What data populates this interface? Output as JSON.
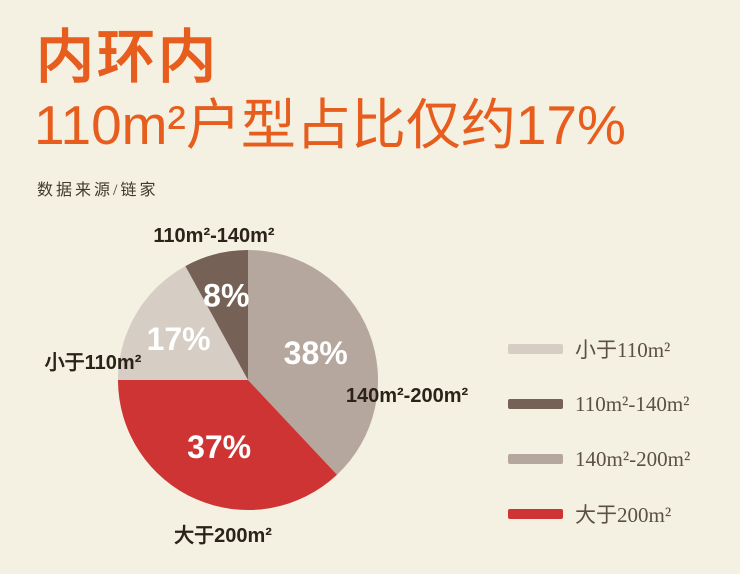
{
  "header": {
    "title_line1": "内环内",
    "title_line2": "110m²户型占比仅约17%",
    "source": "数据来源/链家"
  },
  "colors": {
    "background": "#f4f0e2",
    "accent_orange": "#e75d1d",
    "slice_label_text": "#2b221a",
    "legend_text": "#5c5046",
    "percent_text": "#ffffff"
  },
  "chart_data": {
    "type": "pie",
    "title": "内环内 110m²户型占比仅约17%",
    "source": "数据来源/链家",
    "direction": "clockwise",
    "start_angle_deg": 0,
    "legend_position": "right",
    "percent_label_format": "{value}%",
    "slices": [
      {
        "label": "140m²-200m²",
        "value": 38,
        "color": "#b5a79d"
      },
      {
        "label": "大于200m²",
        "value": 37,
        "color": "#ce3433"
      },
      {
        "label": "小于110m²",
        "value": 17,
        "color": "#d6cdc4"
      },
      {
        "label": "110m²-140m²",
        "value": 8,
        "color": "#756156"
      }
    ],
    "legend_order": [
      2,
      3,
      0,
      1
    ]
  }
}
